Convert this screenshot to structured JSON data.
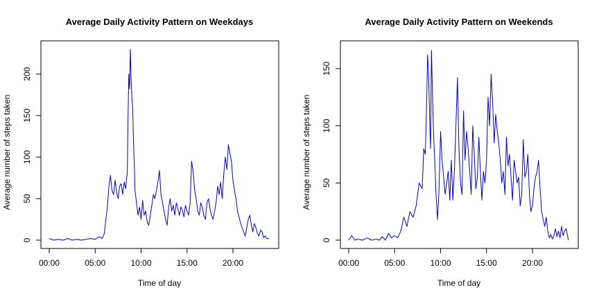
{
  "chart_data": [
    {
      "type": "line",
      "title": "Average Daily Activity Pattern on Weekdays",
      "xlabel": "Time of day",
      "ylabel": "Average number of steps taken",
      "color": "#0000CD",
      "xlim": [
        0,
        1440
      ],
      "ylim": [
        0,
        230
      ],
      "x_ticks": [
        {
          "value": 0,
          "label": "00:00"
        },
        {
          "value": 300,
          "label": "05:00"
        },
        {
          "value": 600,
          "label": "10:00"
        },
        {
          "value": 900,
          "label": "15:00"
        },
        {
          "value": 1200,
          "label": "20:00"
        }
      ],
      "y_ticks": [
        {
          "value": 0,
          "label": "0"
        },
        {
          "value": 50,
          "label": "50"
        },
        {
          "value": 100,
          "label": "100"
        },
        {
          "value": 150,
          "label": "150"
        },
        {
          "value": 200,
          "label": "200"
        }
      ],
      "grid": false,
      "x": [
        0,
        30,
        60,
        90,
        120,
        150,
        180,
        210,
        240,
        270,
        300,
        315,
        330,
        345,
        360,
        370,
        380,
        390,
        400,
        410,
        420,
        430,
        440,
        450,
        460,
        470,
        480,
        490,
        500,
        505,
        510,
        515,
        520,
        525,
        530,
        535,
        540,
        545,
        550,
        555,
        560,
        570,
        580,
        590,
        600,
        610,
        620,
        630,
        640,
        650,
        660,
        670,
        680,
        690,
        700,
        710,
        720,
        730,
        740,
        750,
        760,
        770,
        780,
        790,
        800,
        810,
        820,
        830,
        840,
        850,
        860,
        870,
        880,
        890,
        900,
        910,
        920,
        930,
        940,
        950,
        960,
        970,
        980,
        990,
        1000,
        1010,
        1020,
        1030,
        1040,
        1050,
        1060,
        1070,
        1080,
        1090,
        1100,
        1110,
        1120,
        1130,
        1140,
        1150,
        1160,
        1170,
        1180,
        1190,
        1200,
        1210,
        1220,
        1230,
        1240,
        1250,
        1260,
        1270,
        1280,
        1290,
        1300,
        1310,
        1320,
        1330,
        1340,
        1350,
        1360,
        1370,
        1380,
        1390,
        1400,
        1410,
        1420,
        1435
      ],
      "y": [
        2,
        0,
        1,
        0,
        2,
        0,
        1,
        0,
        1,
        2,
        1,
        3,
        4,
        2,
        8,
        25,
        40,
        65,
        78,
        60,
        55,
        72,
        58,
        50,
        65,
        68,
        55,
        70,
        62,
        75,
        80,
        150,
        200,
        182,
        230,
        195,
        170,
        160,
        120,
        95,
        60,
        45,
        30,
        40,
        25,
        48,
        30,
        35,
        22,
        18,
        30,
        42,
        55,
        50,
        60,
        70,
        84,
        55,
        45,
        35,
        25,
        18,
        40,
        50,
        35,
        42,
        30,
        45,
        38,
        30,
        40,
        36,
        28,
        42,
        35,
        30,
        45,
        95,
        82,
        60,
        50,
        35,
        30,
        45,
        40,
        30,
        25,
        45,
        50,
        38,
        30,
        25,
        35,
        45,
        65,
        55,
        70,
        50,
        80,
        100,
        85,
        115,
        105,
        95,
        72,
        60,
        50,
        35,
        28,
        20,
        15,
        10,
        5,
        15,
        25,
        30,
        18,
        10,
        20,
        15,
        8,
        5,
        12,
        10,
        3,
        5,
        2,
        2
      ]
    },
    {
      "type": "line",
      "title": "Average Daily Activity Pattern on Weekends",
      "xlabel": "Time of day",
      "ylabel": "Average number of steps taken",
      "color": "#0000CD",
      "xlim": [
        0,
        1440
      ],
      "ylim": [
        0,
        167
      ],
      "x_ticks": [
        {
          "value": 0,
          "label": "00:00"
        },
        {
          "value": 300,
          "label": "05:00"
        },
        {
          "value": 600,
          "label": "10:00"
        },
        {
          "value": 900,
          "label": "15:00"
        },
        {
          "value": 1200,
          "label": "20:00"
        }
      ],
      "y_ticks": [
        {
          "value": 0,
          "label": "0"
        },
        {
          "value": 50,
          "label": "50"
        },
        {
          "value": 100,
          "label": "100"
        },
        {
          "value": 150,
          "label": "150"
        }
      ],
      "grid": false,
      "x": [
        0,
        20,
        40,
        60,
        90,
        120,
        150,
        180,
        200,
        220,
        240,
        260,
        280,
        300,
        320,
        340,
        360,
        380,
        400,
        420,
        440,
        460,
        480,
        490,
        500,
        505,
        510,
        515,
        520,
        525,
        530,
        535,
        540,
        545,
        550,
        555,
        560,
        570,
        580,
        590,
        600,
        610,
        620,
        630,
        640,
        650,
        660,
        670,
        680,
        690,
        700,
        710,
        720,
        730,
        740,
        750,
        760,
        770,
        780,
        790,
        800,
        810,
        820,
        830,
        840,
        850,
        860,
        870,
        880,
        890,
        900,
        910,
        920,
        930,
        940,
        950,
        960,
        970,
        980,
        990,
        1000,
        1010,
        1020,
        1030,
        1040,
        1050,
        1060,
        1070,
        1080,
        1090,
        1100,
        1110,
        1120,
        1130,
        1140,
        1150,
        1160,
        1170,
        1180,
        1190,
        1200,
        1210,
        1220,
        1230,
        1240,
        1250,
        1260,
        1270,
        1280,
        1290,
        1300,
        1310,
        1320,
        1330,
        1340,
        1350,
        1360,
        1370,
        1380,
        1390,
        1400,
        1410,
        1420,
        1435
      ],
      "y": [
        0,
        4,
        0,
        1,
        0,
        2,
        0,
        1,
        0,
        3,
        0,
        6,
        2,
        4,
        2,
        8,
        20,
        12,
        25,
        20,
        30,
        50,
        45,
        80,
        75,
        100,
        125,
        162,
        150,
        130,
        100,
        80,
        166,
        140,
        110,
        90,
        75,
        40,
        18,
        45,
        95,
        70,
        55,
        40,
        50,
        60,
        35,
        70,
        35,
        60,
        100,
        142,
        80,
        50,
        40,
        113,
        70,
        95,
        80,
        60,
        40,
        100,
        75,
        45,
        55,
        90,
        60,
        35,
        60,
        50,
        70,
        125,
        100,
        145,
        120,
        85,
        110,
        95,
        85,
        70,
        50,
        60,
        40,
        90,
        65,
        75,
        55,
        35,
        70,
        60,
        50,
        55,
        30,
        40,
        88,
        55,
        60,
        75,
        40,
        25,
        30,
        45,
        55,
        60,
        70,
        45,
        25,
        18,
        12,
        20,
        8,
        2,
        5,
        1,
        4,
        10,
        3,
        8,
        2,
        12,
        4,
        8,
        10,
        0
      ]
    }
  ]
}
